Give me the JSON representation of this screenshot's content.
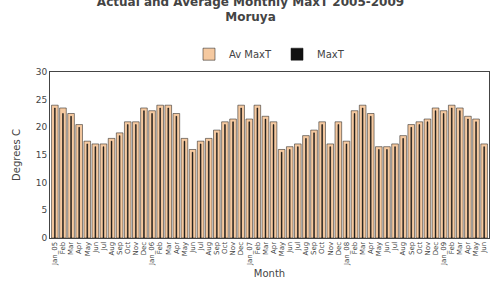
{
  "chart_data": {
    "type": "bar",
    "title": "Actual and Average Monthly MaxT 2005-2009",
    "subtitle": "Moruya",
    "x_label": "Month",
    "y_label": "Degrees C",
    "categories": [
      "Jan_05",
      "Feb",
      "Mar",
      "Apr",
      "May",
      "Jun",
      "Jul",
      "Aug",
      "Sep",
      "Oct",
      "Nov",
      "Dec",
      "Jan_06",
      "Feb",
      "Mar",
      "Apr",
      "May",
      "Jun",
      "Jul",
      "Aug",
      "Sep",
      "Oct",
      "Nov",
      "Dec",
      "Jan_07",
      "Feb",
      "Mar",
      "Apr",
      "May",
      "Jun",
      "Jul",
      "Aug",
      "Sep",
      "Oct",
      "Nov",
      "Dec",
      "Jan_08",
      "Feb",
      "Mar",
      "Apr",
      "May",
      "Jun",
      "Jul",
      "Aug",
      "Sep",
      "Oct",
      "Nov",
      "Dec",
      "Jan_09",
      "Feb",
      "Mar",
      "Apr",
      "May",
      "Jun"
    ],
    "series": [
      {
        "name": "Av MaxT",
        "color": "#F5C9A0",
        "values": [
          24.0,
          23.5,
          22.5,
          20.5,
          17.5,
          17.0,
          17.0,
          18.0,
          19.0,
          21.0,
          21.0,
          23.5,
          23.0,
          24.0,
          24.0,
          22.5,
          18.0,
          16.0,
          17.5,
          18.0,
          19.5,
          21.0,
          21.5,
          24.0,
          21.5,
          24.0,
          22.0,
          21.0,
          16.0,
          16.5,
          17.0,
          18.5,
          19.5,
          21.0,
          17.0,
          21.0,
          17.5,
          23.0,
          24.0,
          22.5,
          16.5,
          16.5,
          17.0,
          18.5,
          20.5,
          21.0,
          21.5,
          23.5,
          23.0,
          24.0,
          23.5,
          22.0,
          21.5,
          17.0
        ]
      },
      {
        "name": "MaxT",
        "color": "#111111",
        "values": [
          23.5,
          22.5,
          22.0,
          20.0,
          17.0,
          16.5,
          16.5,
          17.5,
          18.5,
          20.5,
          20.5,
          23.0,
          22.5,
          23.5,
          23.5,
          22.0,
          17.5,
          15.5,
          17.0,
          17.5,
          19.0,
          20.5,
          21.0,
          23.5,
          21.0,
          23.5,
          21.5,
          20.5,
          15.5,
          16.0,
          16.5,
          18.0,
          19.0,
          20.5,
          16.5,
          20.5,
          17.0,
          22.5,
          23.5,
          22.0,
          16.0,
          16.0,
          16.5,
          18.0,
          20.0,
          20.5,
          21.0,
          23.0,
          22.5,
          23.5,
          23.0,
          21.5,
          21.0,
          16.5
        ]
      }
    ],
    "ylim": [
      0,
      30
    ],
    "yticks": [
      0,
      5,
      10,
      15,
      20,
      25,
      30
    ],
    "grid": false,
    "legend": "top"
  }
}
